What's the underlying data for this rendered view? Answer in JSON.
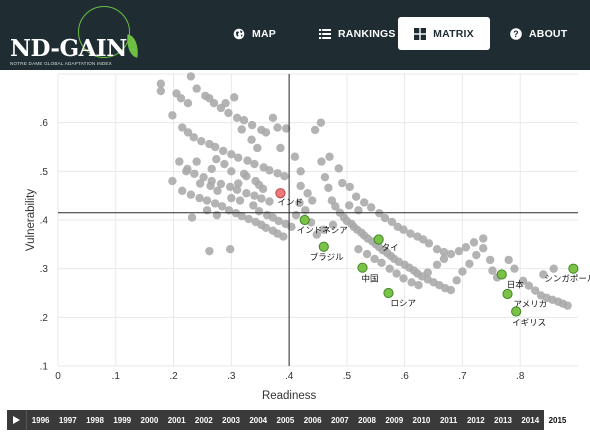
{
  "header": {
    "logo_text": "ND-GAIN",
    "logo_subtitle": "NOTRE DAME GLOBAL ADAPTATION INDEX",
    "nav": [
      {
        "label": "MAP",
        "icon": "globe-icon",
        "active": false
      },
      {
        "label": "RANKINGS",
        "icon": "list-icon",
        "active": false
      },
      {
        "label": "MATRIX",
        "icon": "grid-icon",
        "active": true
      },
      {
        "label": "ABOUT",
        "icon": "help-icon",
        "active": false
      }
    ]
  },
  "colors": {
    "header_bg": "#1f2d33",
    "highlight_point": "#7cc248",
    "selected_point": "#ee7a7a",
    "background_point": "#a8a8a8"
  },
  "chart_data": {
    "type": "scatter",
    "xlabel": "Readiness",
    "ylabel": "Vulnerability",
    "xlim": [
      0,
      0.9
    ],
    "ylim": [
      0.1,
      0.7
    ],
    "x_ticks": [
      "0",
      ".1",
      ".2",
      ".3",
      ".4",
      ".5",
      ".6",
      ".7",
      ".8"
    ],
    "y_ticks": [
      ".1",
      ".2",
      ".3",
      ".4",
      ".5",
      ".6"
    ],
    "grid": true,
    "reference_lines": {
      "readiness": 0.4,
      "vulnerability": 0.415
    },
    "highlighted": [
      {
        "name": "インド",
        "x": 0.385,
        "y": 0.455
      },
      {
        "name": "インドネシア",
        "x": 0.427,
        "y": 0.4
      },
      {
        "name": "ブラジル",
        "x": 0.46,
        "y": 0.345
      },
      {
        "name": "タイ",
        "x": 0.555,
        "y": 0.36
      },
      {
        "name": "中国",
        "x": 0.527,
        "y": 0.302
      },
      {
        "name": "ロシア",
        "x": 0.572,
        "y": 0.25
      },
      {
        "name": "日本",
        "x": 0.768,
        "y": 0.288
      },
      {
        "name": "アメリカ",
        "x": 0.778,
        "y": 0.248
      },
      {
        "name": "イギリス",
        "x": 0.793,
        "y": 0.212
      },
      {
        "name": "シンガポール",
        "x": 0.892,
        "y": 0.3
      }
    ],
    "others": [
      [
        0.178,
        0.68
      ],
      [
        0.178,
        0.665
      ],
      [
        0.198,
        0.615
      ],
      [
        0.205,
        0.66
      ],
      [
        0.213,
        0.65
      ],
      [
        0.225,
        0.64
      ],
      [
        0.23,
        0.695
      ],
      [
        0.24,
        0.67
      ],
      [
        0.255,
        0.655
      ],
      [
        0.262,
        0.65
      ],
      [
        0.27,
        0.64
      ],
      [
        0.282,
        0.63
      ],
      [
        0.295,
        0.62
      ],
      [
        0.31,
        0.61
      ],
      [
        0.322,
        0.605
      ],
      [
        0.336,
        0.595
      ],
      [
        0.352,
        0.585
      ],
      [
        0.36,
        0.58
      ],
      [
        0.38,
        0.59
      ],
      [
        0.395,
        0.588
      ],
      [
        0.215,
        0.59
      ],
      [
        0.225,
        0.58
      ],
      [
        0.235,
        0.57
      ],
      [
        0.248,
        0.562
      ],
      [
        0.262,
        0.556
      ],
      [
        0.272,
        0.55
      ],
      [
        0.286,
        0.542
      ],
      [
        0.3,
        0.535
      ],
      [
        0.312,
        0.528
      ],
      [
        0.328,
        0.522
      ],
      [
        0.34,
        0.515
      ],
      [
        0.356,
        0.508
      ],
      [
        0.366,
        0.502
      ],
      [
        0.38,
        0.496
      ],
      [
        0.392,
        0.49
      ],
      [
        0.21,
        0.52
      ],
      [
        0.222,
        0.5
      ],
      [
        0.236,
        0.495
      ],
      [
        0.252,
        0.488
      ],
      [
        0.266,
        0.48
      ],
      [
        0.282,
        0.474
      ],
      [
        0.298,
        0.468
      ],
      [
        0.31,
        0.462
      ],
      [
        0.326,
        0.455
      ],
      [
        0.34,
        0.45
      ],
      [
        0.352,
        0.444
      ],
      [
        0.366,
        0.438
      ],
      [
        0.198,
        0.48
      ],
      [
        0.215,
        0.46
      ],
      [
        0.23,
        0.452
      ],
      [
        0.245,
        0.445
      ],
      [
        0.258,
        0.44
      ],
      [
        0.272,
        0.434
      ],
      [
        0.284,
        0.428
      ],
      [
        0.296,
        0.42
      ],
      [
        0.308,
        0.414
      ],
      [
        0.318,
        0.408
      ],
      [
        0.33,
        0.402
      ],
      [
        0.342,
        0.396
      ],
      [
        0.352,
        0.39
      ],
      [
        0.36,
        0.384
      ],
      [
        0.372,
        0.378
      ],
      [
        0.38,
        0.372
      ],
      [
        0.39,
        0.366
      ],
      [
        0.29,
        0.64
      ],
      [
        0.305,
        0.652
      ],
      [
        0.318,
        0.586
      ],
      [
        0.335,
        0.565
      ],
      [
        0.345,
        0.548
      ],
      [
        0.322,
        0.495
      ],
      [
        0.348,
        0.472
      ],
      [
        0.355,
        0.464
      ],
      [
        0.338,
        0.43
      ],
      [
        0.348,
        0.418
      ],
      [
        0.362,
        0.41
      ],
      [
        0.372,
        0.405
      ],
      [
        0.382,
        0.398
      ],
      [
        0.394,
        0.392
      ],
      [
        0.404,
        0.386
      ],
      [
        0.258,
        0.42
      ],
      [
        0.275,
        0.41
      ],
      [
        0.232,
        0.405
      ],
      [
        0.224,
        0.505
      ],
      [
        0.24,
        0.52
      ],
      [
        0.3,
        0.5
      ],
      [
        0.288,
        0.515
      ],
      [
        0.274,
        0.525
      ],
      [
        0.266,
        0.505
      ],
      [
        0.312,
        0.475
      ],
      [
        0.326,
        0.49
      ],
      [
        0.342,
        0.48
      ],
      [
        0.3,
        0.445
      ],
      [
        0.315,
        0.44
      ],
      [
        0.276,
        0.46
      ],
      [
        0.264,
        0.47
      ],
      [
        0.246,
        0.475
      ],
      [
        0.262,
        0.336
      ],
      [
        0.298,
        0.34
      ],
      [
        0.372,
        0.61
      ],
      [
        0.385,
        0.548
      ],
      [
        0.41,
        0.53
      ],
      [
        0.42,
        0.5
      ],
      [
        0.42,
        0.47
      ],
      [
        0.432,
        0.455
      ],
      [
        0.44,
        0.44
      ],
      [
        0.445,
        0.585
      ],
      [
        0.455,
        0.6
      ],
      [
        0.462,
        0.488
      ],
      [
        0.468,
        0.466
      ],
      [
        0.474,
        0.44
      ],
      [
        0.48,
        0.428
      ],
      [
        0.488,
        0.415
      ],
      [
        0.495,
        0.405
      ],
      [
        0.5,
        0.398
      ],
      [
        0.508,
        0.392
      ],
      [
        0.512,
        0.386
      ],
      [
        0.518,
        0.38
      ],
      [
        0.525,
        0.374
      ],
      [
        0.53,
        0.368
      ],
      [
        0.536,
        0.362
      ],
      [
        0.544,
        0.356
      ],
      [
        0.55,
        0.35
      ],
      [
        0.556,
        0.344
      ],
      [
        0.562,
        0.338
      ],
      [
        0.57,
        0.332
      ],
      [
        0.576,
        0.326
      ],
      [
        0.582,
        0.32
      ],
      [
        0.59,
        0.314
      ],
      [
        0.6,
        0.308
      ],
      [
        0.608,
        0.302
      ],
      [
        0.616,
        0.296
      ],
      [
        0.622,
        0.29
      ],
      [
        0.63,
        0.284
      ],
      [
        0.64,
        0.278
      ],
      [
        0.65,
        0.272
      ],
      [
        0.66,
        0.266
      ],
      [
        0.67,
        0.26
      ],
      [
        0.68,
        0.256
      ],
      [
        0.69,
        0.276
      ],
      [
        0.7,
        0.294
      ],
      [
        0.712,
        0.31
      ],
      [
        0.724,
        0.328
      ],
      [
        0.736,
        0.342
      ],
      [
        0.748,
        0.318
      ],
      [
        0.752,
        0.296
      ],
      [
        0.76,
        0.282
      ],
      [
        0.79,
        0.3
      ],
      [
        0.805,
        0.275
      ],
      [
        0.815,
        0.265
      ],
      [
        0.826,
        0.255
      ],
      [
        0.836,
        0.245
      ],
      [
        0.846,
        0.24
      ],
      [
        0.856,
        0.236
      ],
      [
        0.866,
        0.232
      ],
      [
        0.874,
        0.228
      ],
      [
        0.882,
        0.224
      ],
      [
        0.84,
        0.288
      ],
      [
        0.858,
        0.3
      ],
      [
        0.78,
        0.318
      ],
      [
        0.456,
        0.52
      ],
      [
        0.47,
        0.53
      ],
      [
        0.486,
        0.506
      ],
      [
        0.492,
        0.476
      ],
      [
        0.505,
        0.468
      ],
      [
        0.516,
        0.448
      ],
      [
        0.53,
        0.436
      ],
      [
        0.542,
        0.426
      ],
      [
        0.556,
        0.414
      ],
      [
        0.566,
        0.404
      ],
      [
        0.578,
        0.396
      ],
      [
        0.588,
        0.386
      ],
      [
        0.598,
        0.38
      ],
      [
        0.61,
        0.372
      ],
      [
        0.622,
        0.366
      ],
      [
        0.632,
        0.36
      ],
      [
        0.642,
        0.352
      ],
      [
        0.656,
        0.34
      ],
      [
        0.668,
        0.334
      ],
      [
        0.68,
        0.33
      ],
      [
        0.694,
        0.336
      ],
      [
        0.706,
        0.344
      ],
      [
        0.72,
        0.354
      ],
      [
        0.736,
        0.362
      ],
      [
        0.52,
        0.34
      ],
      [
        0.535,
        0.33
      ],
      [
        0.548,
        0.32
      ],
      [
        0.56,
        0.312
      ],
      [
        0.574,
        0.3
      ],
      [
        0.586,
        0.29
      ],
      [
        0.598,
        0.28
      ],
      [
        0.612,
        0.272
      ],
      [
        0.624,
        0.266
      ],
      [
        0.64,
        0.292
      ],
      [
        0.656,
        0.308
      ],
      [
        0.668,
        0.32
      ],
      [
        0.52,
        0.42
      ],
      [
        0.504,
        0.43
      ],
      [
        0.476,
        0.39
      ],
      [
        0.46,
        0.38
      ],
      [
        0.448,
        0.37
      ],
      [
        0.438,
        0.395
      ],
      [
        0.428,
        0.42
      ],
      [
        0.418,
        0.435
      ],
      [
        0.412,
        0.41
      ]
    ]
  },
  "timeline": {
    "years": [
      "1996",
      "1997",
      "1998",
      "1999",
      "2000",
      "2001",
      "2002",
      "2003",
      "2004",
      "2005",
      "2006",
      "2007",
      "2008",
      "2009",
      "2010",
      "2011",
      "2012",
      "2013",
      "2014",
      "2015"
    ],
    "active_year": "2015"
  }
}
